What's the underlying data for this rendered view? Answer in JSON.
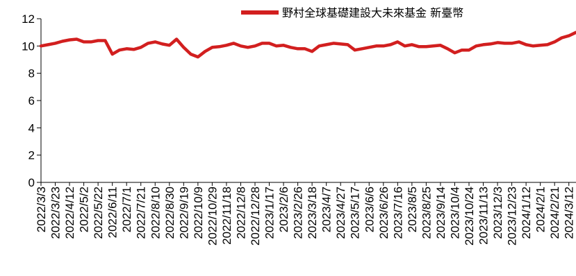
{
  "chart_data": {
    "type": "line",
    "title": "",
    "xlabel": "",
    "ylabel": "",
    "ylim": [
      0,
      12
    ],
    "y_ticks": [
      "0",
      "2",
      "4",
      "6",
      "8",
      "10",
      "12"
    ],
    "x_tick_labels": [
      "2022/3/3",
      "2022/3/23",
      "2022/4/12",
      "2022/5/2",
      "2022/5/22",
      "2022/6/11",
      "2022/7/1",
      "2022/7/21",
      "2022/8/10",
      "2022/8/30",
      "2022/9/19",
      "2022/10/9",
      "2022/10/29",
      "2022/11/18",
      "2022/12/8",
      "2022/12/28",
      "2023/1/17",
      "2023/2/6",
      "2023/2/26",
      "2023/3/18",
      "2023/4/7",
      "2023/4/27",
      "2023/5/17",
      "2023/6/6",
      "2023/6/26",
      "2023/7/16",
      "2023/8/5",
      "2023/8/25",
      "2023/9/14",
      "2023/10/4",
      "2023/10/24",
      "2023/11/13",
      "2023/12/3",
      "2023/12/23",
      "2024/1/12",
      "2024/2/1",
      "2024/2/21",
      "2024/3/12"
    ],
    "grid": false,
    "legend_position": "top-right",
    "colors": {
      "series": "#d21f1f",
      "axis": "#000000"
    },
    "series": [
      {
        "name": "野村全球基礎建設大未來基金 新臺幣",
        "x": [
          "2022/3/3",
          "2022/3/13",
          "2022/3/23",
          "2022/4/2",
          "2022/4/12",
          "2022/4/22",
          "2022/5/2",
          "2022/5/12",
          "2022/5/22",
          "2022/6/1",
          "2022/6/11",
          "2022/6/21",
          "2022/7/1",
          "2022/7/11",
          "2022/7/21",
          "2022/7/31",
          "2022/8/10",
          "2022/8/20",
          "2022/8/30",
          "2022/9/9",
          "2022/9/19",
          "2022/9/29",
          "2022/10/9",
          "2022/10/19",
          "2022/10/29",
          "2022/11/8",
          "2022/11/18",
          "2022/11/28",
          "2022/12/8",
          "2022/12/18",
          "2022/12/28",
          "2023/1/7",
          "2023/1/17",
          "2023/1/27",
          "2023/2/6",
          "2023/2/16",
          "2023/2/26",
          "2023/3/8",
          "2023/3/18",
          "2023/3/28",
          "2023/4/7",
          "2023/4/17",
          "2023/4/27",
          "2023/5/7",
          "2023/5/17",
          "2023/5/27",
          "2023/6/6",
          "2023/6/16",
          "2023/6/26",
          "2023/7/6",
          "2023/7/16",
          "2023/7/26",
          "2023/8/5",
          "2023/8/15",
          "2023/8/25",
          "2023/9/4",
          "2023/9/14",
          "2023/9/24",
          "2023/10/4",
          "2023/10/14",
          "2023/10/24",
          "2023/11/3",
          "2023/11/13",
          "2023/11/23",
          "2023/12/3",
          "2023/12/13",
          "2023/12/23",
          "2024/1/2",
          "2024/1/12",
          "2024/1/22",
          "2024/2/1",
          "2024/2/11",
          "2024/2/21",
          "2024/3/2",
          "2024/3/12",
          "2024/3/22"
        ],
        "values": [
          10.0,
          10.1,
          10.2,
          10.35,
          10.45,
          10.5,
          10.3,
          10.3,
          10.4,
          10.4,
          9.4,
          9.7,
          9.8,
          9.75,
          9.9,
          10.2,
          10.3,
          10.15,
          10.05,
          10.5,
          9.9,
          9.4,
          9.2,
          9.6,
          9.9,
          9.95,
          10.05,
          10.2,
          10.0,
          9.9,
          10.0,
          10.2,
          10.2,
          10.0,
          10.05,
          9.9,
          9.8,
          9.8,
          9.6,
          10.0,
          10.1,
          10.2,
          10.15,
          10.1,
          9.7,
          9.8,
          9.9,
          10.0,
          10.0,
          10.1,
          10.3,
          10.0,
          10.1,
          9.95,
          9.95,
          10.0,
          10.05,
          9.8,
          9.5,
          9.7,
          9.7,
          10.0,
          10.1,
          10.15,
          10.25,
          10.2,
          10.2,
          10.3,
          10.1,
          10.0,
          10.05,
          10.1,
          10.3,
          10.6,
          10.75,
          11.0
        ]
      }
    ]
  }
}
